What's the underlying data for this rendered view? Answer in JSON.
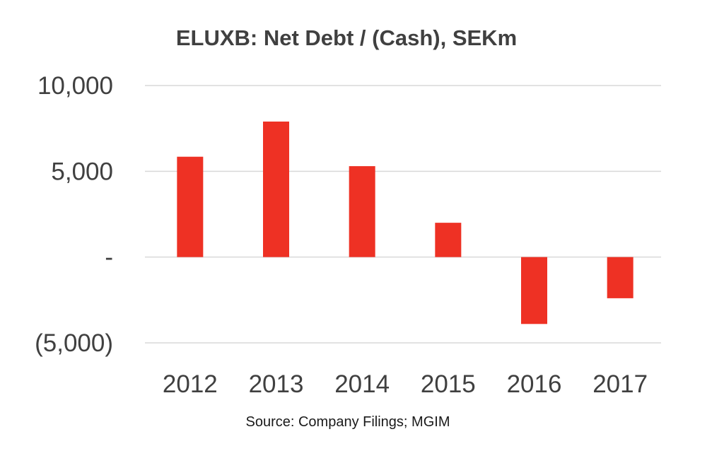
{
  "chart_data": {
    "type": "bar",
    "title": "ELUXB: Net Debt / (Cash), SEKm",
    "source": "Source: Company Filings; MGIM",
    "xlabel": "",
    "ylabel": "",
    "categories": [
      "2012",
      "2013",
      "2014",
      "2015",
      "2016",
      "2017"
    ],
    "values": [
      5850,
      7900,
      5300,
      2000,
      -3900,
      -2400
    ],
    "ylim": [
      -5000,
      10000
    ],
    "yticks": [
      10000,
      5000,
      0,
      -5000
    ],
    "ytick_labels": [
      "10,000",
      "5,000",
      "-",
      "(5,000)"
    ],
    "grid": true,
    "legend": "none",
    "bar_color": "#EE3124",
    "grid_color": "#D9D9D9"
  }
}
